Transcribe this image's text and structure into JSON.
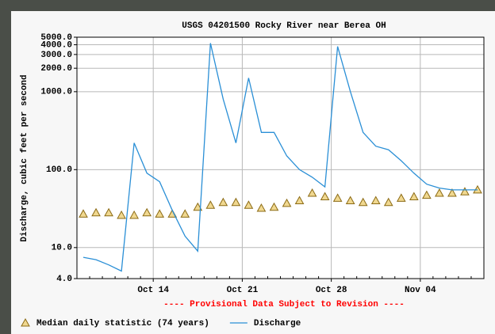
{
  "chart_data": {
    "type": "line",
    "title": "USGS 04201500 Rocky River near Berea OH",
    "y_label": "Discharge, cubic feet per second",
    "annotation": "---- Provisional Data Subject to Revision ----",
    "categories": [
      null,
      null,
      null,
      null,
      null,
      null,
      "Oct 14",
      null,
      null,
      null,
      null,
      null,
      null,
      "Oct 21",
      null,
      null,
      null,
      null,
      null,
      null,
      "Oct 28",
      null,
      null,
      null,
      null,
      null,
      null,
      "Nov 04",
      null,
      null,
      null,
      null
    ],
    "series": [
      {
        "name": "Median daily statistic (74 years)",
        "color": "#8b6a14",
        "marker": "triangle",
        "values": [
          27,
          28,
          28,
          26,
          26,
          28,
          27,
          27,
          27,
          33,
          35,
          38,
          38,
          35,
          32,
          33,
          37,
          40,
          50,
          45,
          43,
          40,
          38,
          40,
          38,
          43,
          45,
          47,
          50,
          50,
          52,
          55
        ]
      },
      {
        "name": "Discharge",
        "color": "#2a8fd6",
        "marker": "line",
        "values": [
          7.5,
          7,
          6,
          5,
          220,
          90,
          70,
          30,
          14,
          9,
          4200,
          800,
          220,
          1500,
          300,
          300,
          150,
          100,
          80,
          60,
          3800,
          1000,
          300,
          200,
          180,
          130,
          90,
          65,
          58,
          55,
          55,
          55
        ]
      }
    ],
    "yscale": "log",
    "ylim": [
      4,
      5000
    ],
    "yticks": [
      {
        "value": 4,
        "label": "4.0"
      },
      {
        "value": 10,
        "label": "10.0"
      },
      {
        "value": 100,
        "label": "100.0"
      },
      {
        "value": 1000,
        "label": "1000.0"
      },
      {
        "value": 2000,
        "label": "2000.0"
      },
      {
        "value": 3000,
        "label": "3000.0"
      },
      {
        "value": 4000,
        "label": "4000.0"
      },
      {
        "value": 5000,
        "label": "5000.0"
      }
    ],
    "grid": true,
    "legend": "bottom"
  }
}
